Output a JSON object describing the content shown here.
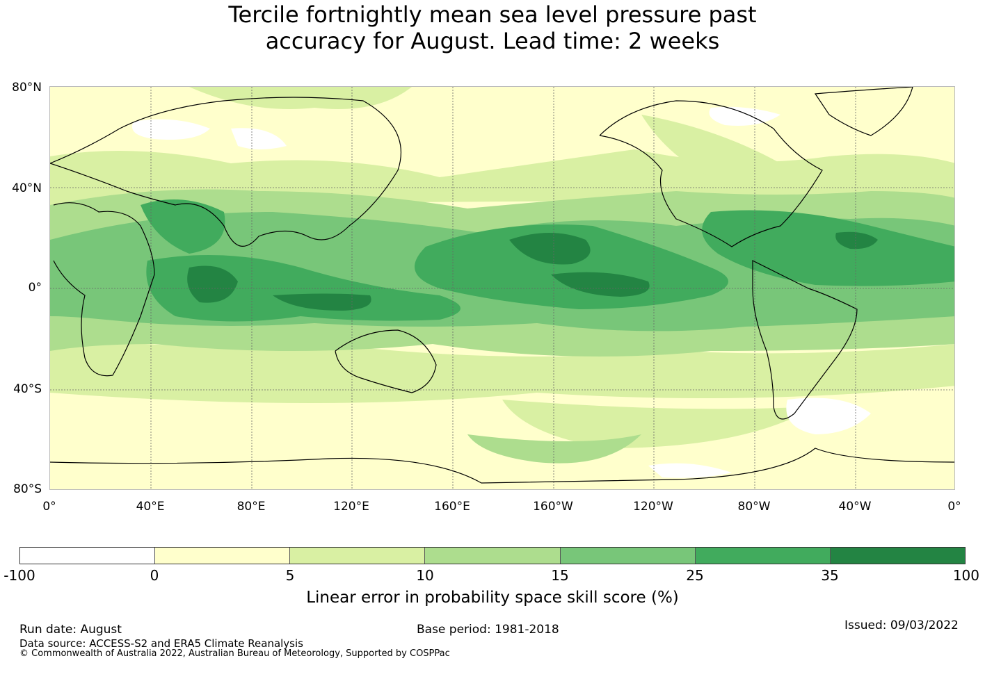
{
  "title_line1": "Tercile fortnightly mean sea level pressure past",
  "title_line2": "accuracy for August. Lead time: 2 weeks",
  "map": {
    "lat_ticks": [
      "80°N",
      "40°N",
      "0°",
      "40°S",
      "80°S"
    ],
    "lon_ticks": [
      "0°",
      "40°E",
      "80°E",
      "120°E",
      "160°E",
      "160°W",
      "120°W",
      "80°W",
      "40°W",
      "0°"
    ]
  },
  "colorbar": {
    "colors": [
      "#ffffff",
      "#ffffcc",
      "#d9f0a3",
      "#addd8e",
      "#78c679",
      "#41ab5d",
      "#238443"
    ],
    "ticks": [
      "-100",
      "0",
      "5",
      "10",
      "15",
      "25",
      "35",
      "100"
    ],
    "label": "Linear error in probability space skill score (%)"
  },
  "footer": {
    "run_date": "Run date: August",
    "base_period": "Base period: 1981-2018",
    "issued": "Issued: 09/03/2022",
    "data_source": "Data source: ACCESS-S2 and ERA5 Climate Reanalysis",
    "copyright": "© Commonwealth of Australia 2022, Australian Bureau of Meteorology, Supported by COSPPac"
  }
}
